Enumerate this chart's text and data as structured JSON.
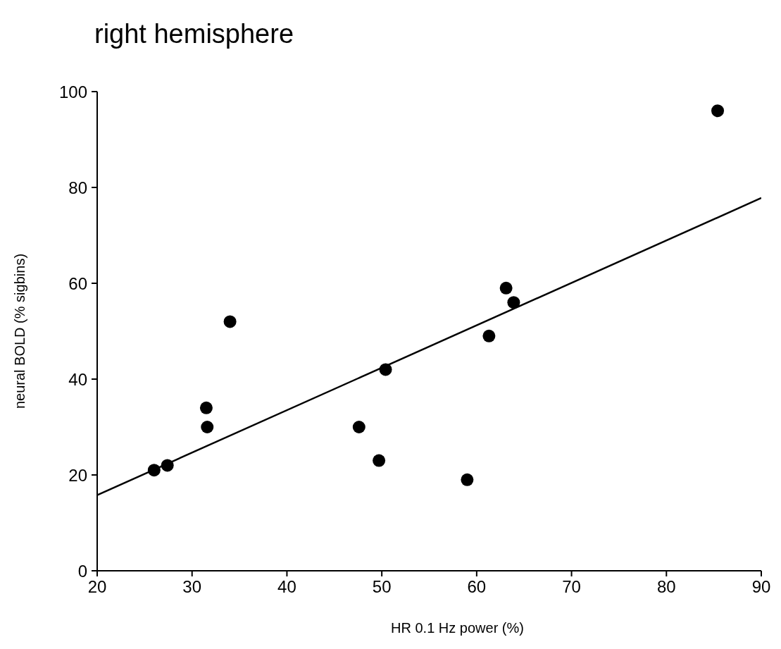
{
  "chart_data": {
    "type": "scatter",
    "title": "right hemisphere",
    "xlabel": "HR 0.1 Hz power (%)",
    "ylabel": "neural BOLD (% sigbins)",
    "xlim": [
      20,
      90
    ],
    "xticks": [
      20,
      30,
      40,
      50,
      60,
      70,
      80,
      90
    ],
    "ylim": [
      0,
      100
    ],
    "yticks": [
      0,
      20,
      40,
      60,
      80,
      100
    ],
    "grid": false,
    "legend": false,
    "series": [
      {
        "color": "#000000",
        "marker": "circle",
        "x": [
          26.0,
          27.4,
          31.5,
          31.6,
          34.0,
          47.6,
          49.7,
          50.4,
          59.0,
          61.3,
          63.1,
          63.9,
          85.4
        ],
        "values": [
          21,
          22,
          34,
          30,
          52,
          30,
          23,
          42,
          19,
          49,
          59,
          56,
          96
        ]
      },
      {
        "type": "line",
        "color": "#000000",
        "line_style": "solid",
        "x": [
          20,
          90
        ],
        "values": [
          15.8,
          77.8
        ]
      }
    ]
  }
}
